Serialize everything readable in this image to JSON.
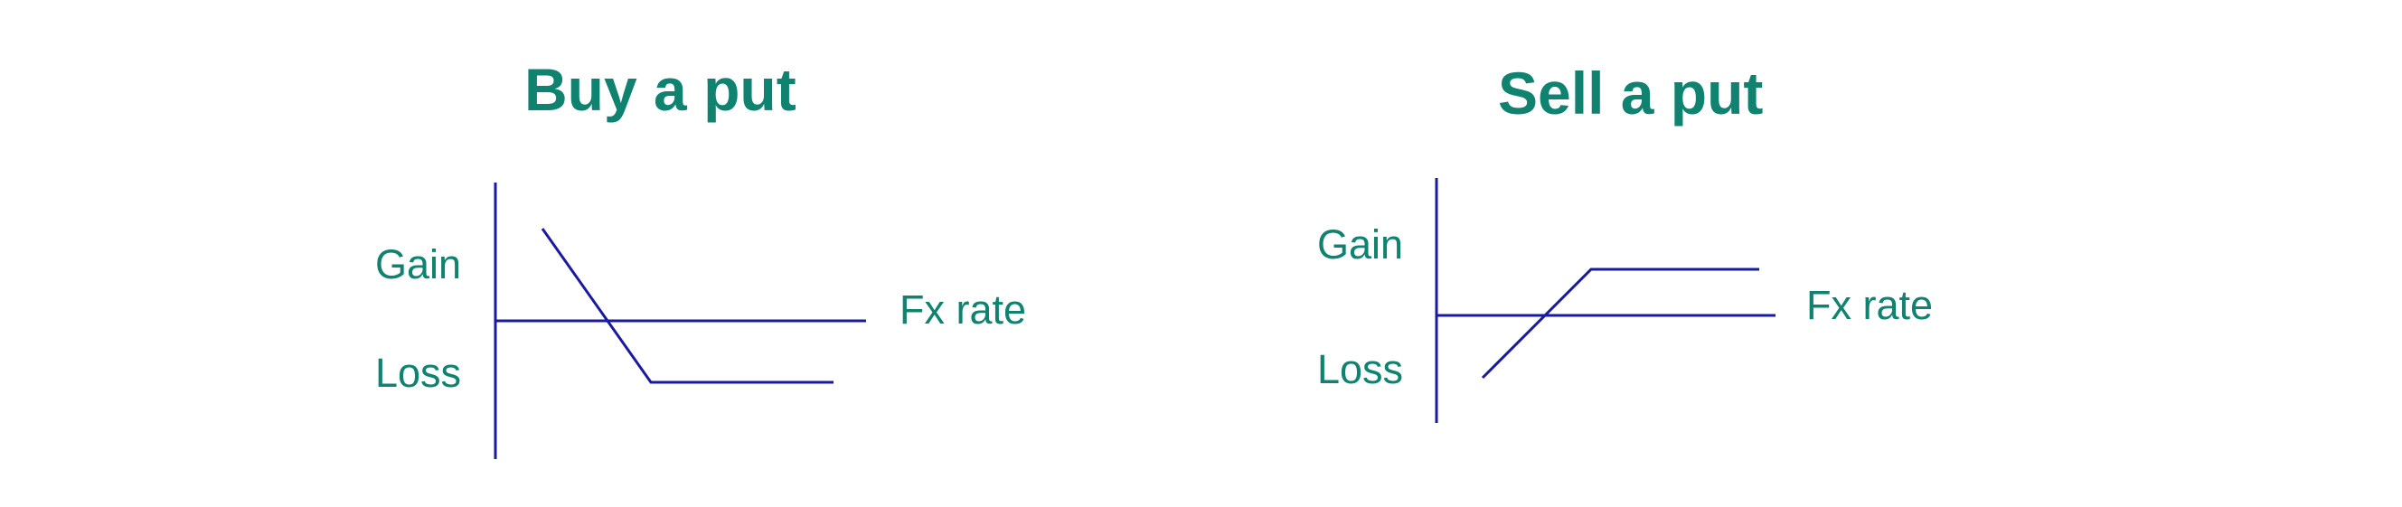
{
  "diagrams": [
    {
      "title": "Buy a put",
      "gain_label": "Gain",
      "loss_label": "Loss",
      "x_axis_label": "Fx rate",
      "payoff_shape": "descending then flat",
      "line_color": "#1a1aa0",
      "text_color": "#0f8270"
    },
    {
      "title": "Sell a put",
      "gain_label": "Gain",
      "loss_label": "Loss",
      "x_axis_label": "Fx rate",
      "payoff_shape": "ascending then flat",
      "line_color": "#1a1aa0",
      "text_color": "#0f8270"
    }
  ]
}
